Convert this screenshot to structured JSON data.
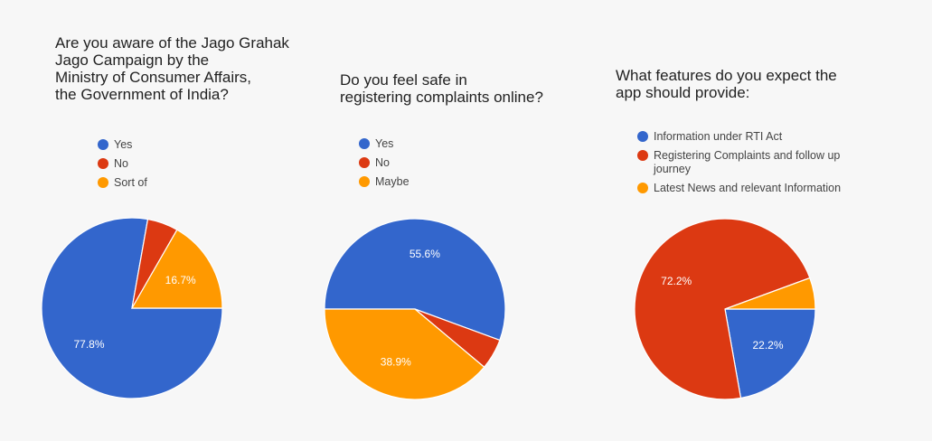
{
  "colors": {
    "blue": "#3366cc",
    "red": "#dc3912",
    "orange": "#ff9900"
  },
  "chart_data": [
    {
      "type": "pie",
      "title_lines": [
        "Are you aware of the Jago Grahak",
        "Jago Campaign by the",
        "Ministry of Consumer Affairs,",
        "the Government of India?"
      ],
      "legend_position": "top",
      "slices": [
        {
          "label": "Yes",
          "value": 77.8,
          "color": "#3366cc",
          "data_label": "77.8%"
        },
        {
          "label": "No",
          "value": 5.5,
          "color": "#dc3912",
          "data_label": ""
        },
        {
          "label": "Sort of",
          "value": 16.7,
          "color": "#ff9900",
          "data_label": "16.7%"
        }
      ]
    },
    {
      "type": "pie",
      "title_lines": [
        "Do you feel safe in",
        "registering complaints online?"
      ],
      "legend_position": "top",
      "slices": [
        {
          "label": "Yes",
          "value": 55.6,
          "color": "#3366cc",
          "data_label": "55.6%"
        },
        {
          "label": "No",
          "value": 5.5,
          "color": "#dc3912",
          "data_label": ""
        },
        {
          "label": "Maybe",
          "value": 38.9,
          "color": "#ff9900",
          "data_label": "38.9%"
        }
      ]
    },
    {
      "type": "pie",
      "title_lines": [
        "What features do you expect the",
        "app should provide:"
      ],
      "legend_position": "top",
      "slices": [
        {
          "label_lines": [
            "Information under RTI Act"
          ],
          "value": 22.2,
          "color": "#3366cc",
          "data_label": "22.2%"
        },
        {
          "label_lines": [
            "Registering Complaints and follow up",
            "journey"
          ],
          "value": 72.2,
          "color": "#dc3912",
          "data_label": "72.2%"
        },
        {
          "label_lines": [
            "Latest News and relevant Information"
          ],
          "value": 5.6,
          "color": "#ff9900",
          "data_label": ""
        }
      ]
    }
  ]
}
